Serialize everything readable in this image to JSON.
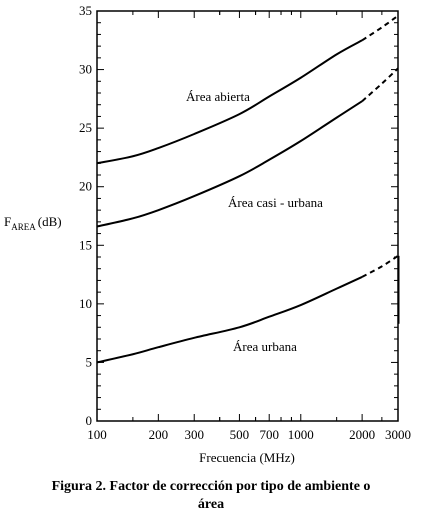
{
  "caption": {
    "line1": "Figura 2. Factor de corrección por tipo de ambiente o",
    "line2": "área"
  },
  "chart_data": {
    "type": "line",
    "xlabel": "Frecuencia (MHz)",
    "ylabel_main": "F",
    "ylabel_sub": "AREA",
    "ylabel_unit": "(dB)",
    "x_scale": "log",
    "xlim": [
      100,
      3000
    ],
    "ylim": [
      0,
      35
    ],
    "x_ticks": [
      100,
      200,
      300,
      500,
      700,
      1000,
      2000,
      3000
    ],
    "y_ticks": [
      0,
      5,
      10,
      15,
      20,
      25,
      30,
      35
    ],
    "grid": false,
    "series": [
      {
        "name": "Área abierta",
        "solid": [
          [
            100,
            22.0
          ],
          [
            150,
            22.6
          ],
          [
            200,
            23.3
          ],
          [
            300,
            24.5
          ],
          [
            500,
            26.2
          ],
          [
            700,
            27.7
          ],
          [
            1000,
            29.3
          ],
          [
            1500,
            31.3
          ],
          [
            2000,
            32.5
          ]
        ],
        "dashed": [
          [
            2000,
            32.5
          ],
          [
            2500,
            33.6
          ],
          [
            3000,
            34.6
          ]
        ]
      },
      {
        "name": "Área casi - urbana",
        "solid": [
          [
            100,
            16.6
          ],
          [
            150,
            17.3
          ],
          [
            200,
            18.0
          ],
          [
            300,
            19.2
          ],
          [
            500,
            20.9
          ],
          [
            700,
            22.3
          ],
          [
            1000,
            23.9
          ],
          [
            1500,
            25.9
          ],
          [
            2000,
            27.3
          ]
        ],
        "dashed": [
          [
            2000,
            27.3
          ],
          [
            2500,
            28.8
          ],
          [
            3000,
            30.1
          ]
        ]
      },
      {
        "name": "Área urbana",
        "solid": [
          [
            100,
            5.0
          ],
          [
            150,
            5.7
          ],
          [
            200,
            6.3
          ],
          [
            300,
            7.1
          ],
          [
            500,
            8.0
          ],
          [
            700,
            8.9
          ],
          [
            1000,
            9.9
          ],
          [
            1500,
            11.3
          ],
          [
            2000,
            12.3
          ]
        ],
        "dashed": [
          [
            2000,
            12.3
          ],
          [
            2500,
            13.2
          ],
          [
            3000,
            14.1
          ]
        ]
      }
    ]
  }
}
